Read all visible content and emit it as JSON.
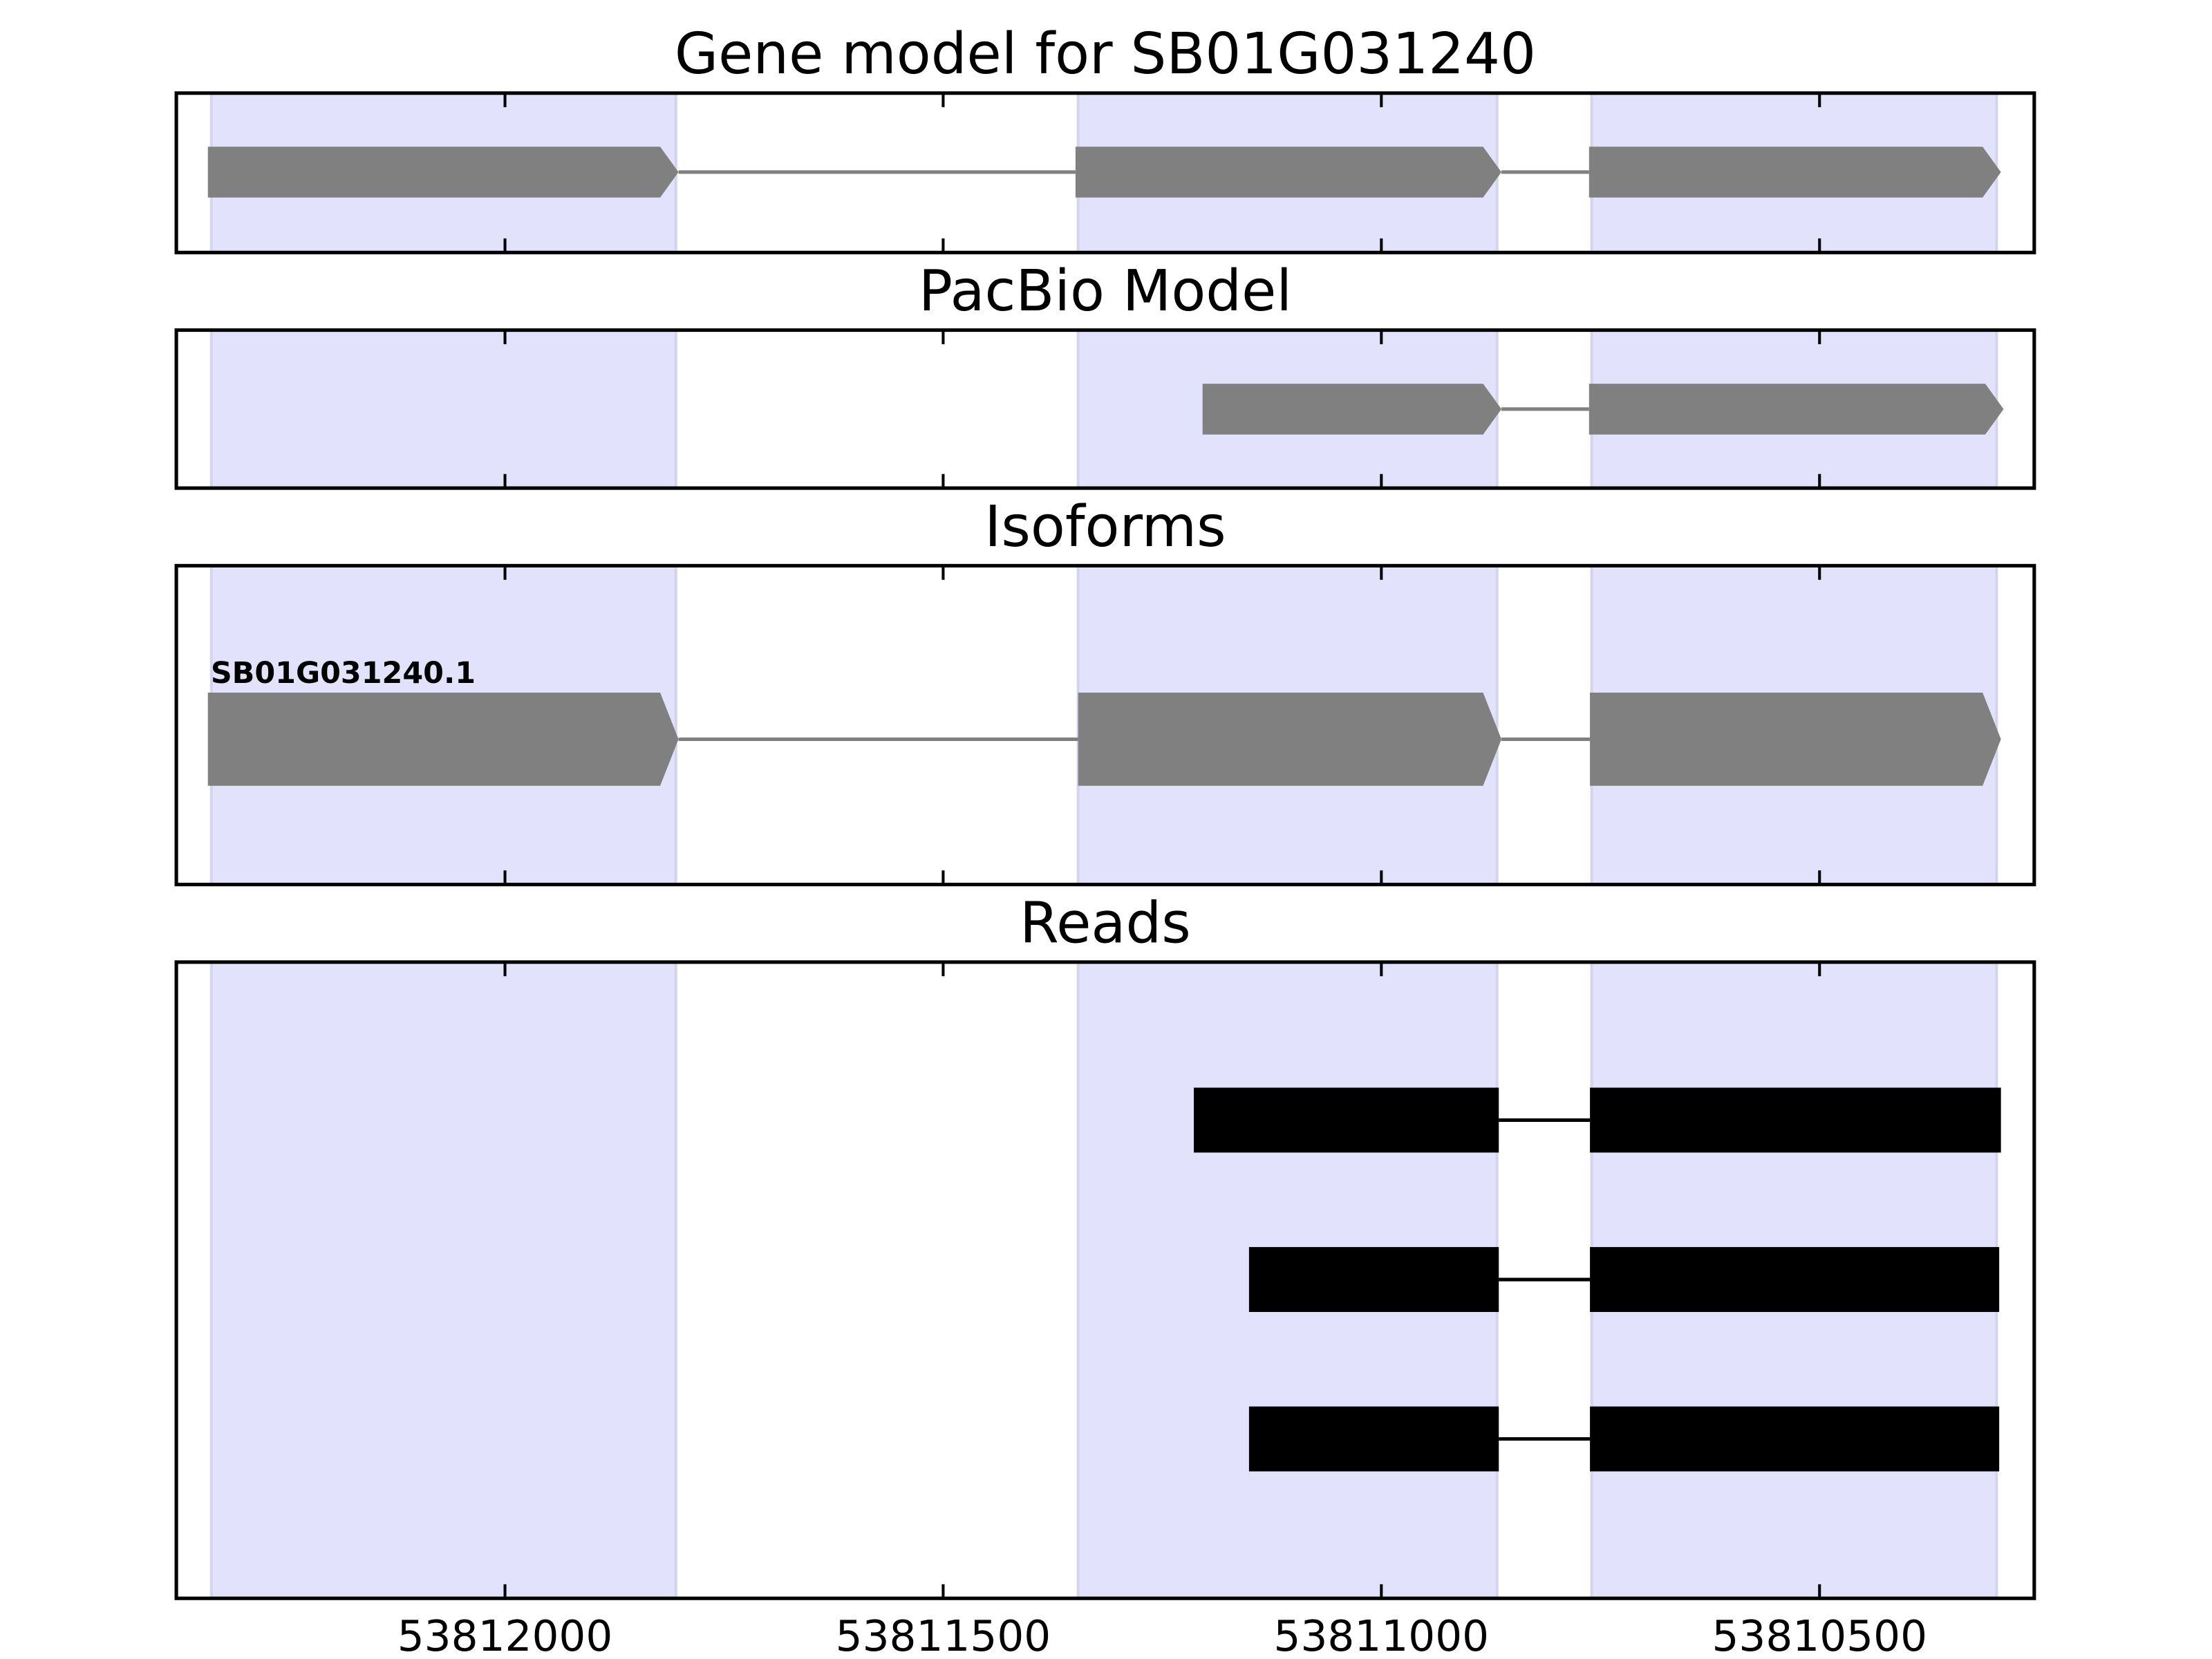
{
  "chart_data": {
    "type": "genetrack",
    "xlim": [
      53812375,
      53810255
    ],
    "xticks": [
      53812000,
      53811500,
      53811000,
      53810500
    ],
    "shade_color": "#e2e2fd",
    "shaded_regions": [
      [
        53812335,
        53811805
      ],
      [
        53811346,
        53810868
      ],
      [
        53810760,
        53810298
      ]
    ],
    "panels": [
      {
        "title": "Gene model for SB01G031240",
        "style": "arrow",
        "color": "#808080",
        "features": [
          {
            "exons": [
              [
                53812339,
                53811802
              ],
              [
                53811349,
                53810863
              ],
              [
                53810763,
                53810293
              ]
            ]
          }
        ]
      },
      {
        "title": "PacBio Model",
        "style": "arrow",
        "color": "#808080",
        "features": [
          {
            "exons": [
              [
                53811204,
                53810863
              ],
              [
                53810763,
                53810290
              ]
            ]
          }
        ]
      },
      {
        "title": "Isoforms",
        "style": "arrow",
        "color": "#808080",
        "features": [
          {
            "label": "SB01G031240.1",
            "exons": [
              [
                53812339,
                53811802
              ],
              [
                53811346,
                53810863
              ],
              [
                53810762,
                53810293
              ]
            ]
          }
        ]
      },
      {
        "title": "Reads",
        "style": "box",
        "color": "#000000",
        "features": [
          {
            "exons": [
              [
                53811214,
                53810866
              ],
              [
                53810762,
                53810293
              ]
            ]
          },
          {
            "exons": [
              [
                53811151,
                53810866
              ],
              [
                53810762,
                53810295
              ]
            ]
          },
          {
            "exons": [
              [
                53811151,
                53810866
              ],
              [
                53810762,
                53810295
              ]
            ]
          }
        ]
      }
    ]
  }
}
